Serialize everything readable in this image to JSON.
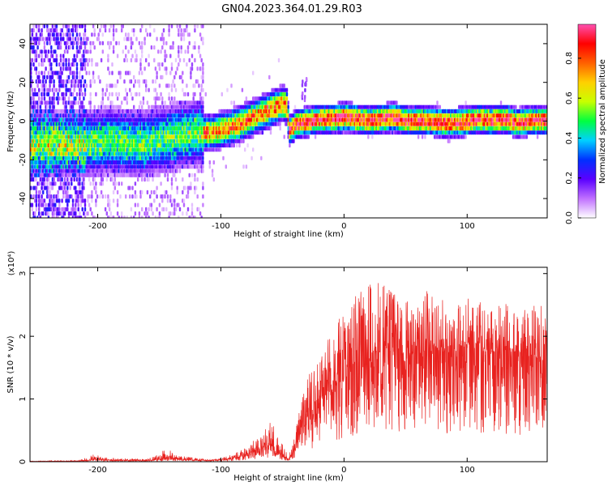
{
  "title": "GN04.2023.364.01.29.R03",
  "chart_data": [
    {
      "type": "heatmap",
      "xlabel": "Height of straight line (km)",
      "ylabel": "Frequency (Hz)",
      "xlim": [
        -255,
        165
      ],
      "ylim": [
        -50,
        50
      ],
      "xticks": [
        -200,
        -100,
        0,
        100
      ],
      "yticks": [
        -40,
        -20,
        0,
        20,
        40
      ],
      "ridge": {
        "x": [
          -235,
          -210,
          -190,
          -170,
          -150,
          -130,
          -110,
          -95,
          -80,
          -70,
          -60,
          -50,
          -47,
          -45,
          -40,
          -35,
          -20,
          -10,
          0,
          10,
          20,
          30,
          40,
          50,
          60,
          70,
          80,
          90,
          100,
          110,
          120,
          130,
          140,
          150,
          160,
          165
        ],
        "y": [
          -12,
          -12,
          -10,
          -12,
          -10,
          -7,
          -6,
          -4,
          0,
          3,
          6,
          9,
          7,
          -5,
          -2,
          -1,
          1,
          1,
          2,
          1,
          0,
          1,
          2,
          0,
          0,
          0,
          -1,
          -1,
          0,
          1,
          0,
          1,
          -1,
          0,
          0,
          0
        ]
      },
      "colorbar": {
        "label": "Normalized spectral amplitude",
        "range": [
          0,
          0.97
        ],
        "ticks": [
          "0.0",
          "0.2",
          "0.4",
          "0.6",
          "0.8"
        ],
        "colors": [
          "#ffffff",
          "#c070ff",
          "#5a00ff",
          "#0030ff",
          "#00d0ff",
          "#00ff40",
          "#c8ff00",
          "#ffd000",
          "#ff6000",
          "#ff0000",
          "#ff50b0"
        ]
      }
    },
    {
      "type": "line",
      "xlabel": "Height of straight line (km)",
      "ylabel": "SNR (10 * v/v)",
      "multiplier": "(x10⁴)",
      "xlim": [
        -255,
        165
      ],
      "ylim": [
        0,
        3.1
      ],
      "xticks": [
        -200,
        -100,
        0,
        100
      ],
      "yticks": [
        "0",
        "1",
        "2",
        "3"
      ],
      "color": "#e8221f",
      "envelope": {
        "x": [
          -255,
          -215,
          -205,
          -195,
          -185,
          -160,
          -150,
          -145,
          -135,
          -110,
          -100,
          -90,
          -80,
          -70,
          -65,
          -60,
          -55,
          -50,
          -45,
          -40,
          -35,
          -30,
          -20,
          -10,
          0,
          10,
          20,
          30,
          40,
          50,
          60,
          70,
          80,
          90,
          100,
          110,
          120,
          130,
          140,
          150,
          160,
          165
        ],
        "y": [
          0.01,
          0.02,
          0.12,
          0.08,
          0.05,
          0.04,
          0.12,
          0.22,
          0.1,
          0.03,
          0.06,
          0.12,
          0.22,
          0.4,
          0.52,
          0.7,
          0.45,
          0.3,
          0.08,
          0.4,
          0.95,
          1.35,
          1.6,
          2.1,
          2.4,
          2.6,
          2.9,
          2.95,
          2.7,
          2.7,
          2.65,
          2.8,
          2.6,
          2.5,
          2.65,
          2.6,
          2.4,
          2.55,
          2.35,
          2.45,
          2.5,
          2.2
        ],
        "mean": [
          0.005,
          0.01,
          0.03,
          0.03,
          0.02,
          0.02,
          0.04,
          0.05,
          0.04,
          0.02,
          0.03,
          0.06,
          0.1,
          0.18,
          0.22,
          0.28,
          0.18,
          0.1,
          0.04,
          0.2,
          0.55,
          0.75,
          0.95,
          1.15,
          1.3,
          1.55,
          1.7,
          1.75,
          1.75,
          1.7,
          1.72,
          1.8,
          1.82,
          1.8,
          1.8,
          1.78,
          1.75,
          1.72,
          1.7,
          1.68,
          1.65,
          1.6
        ]
      }
    }
  ]
}
